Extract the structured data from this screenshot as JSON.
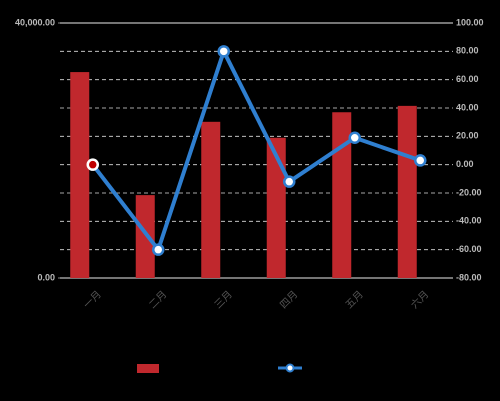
{
  "chart_data": {
    "type": "bar_line",
    "categories": [
      "一月",
      "二月",
      "三月",
      "四月",
      "五月",
      "六月"
    ],
    "series": [
      {
        "type": "bar",
        "color": "#c0282d",
        "values": [
          32300,
          13000,
          24500,
          22000,
          26000,
          27000
        ]
      },
      {
        "type": "line",
        "axis": "y2",
        "color": "#2f7fd0",
        "values": [
          0,
          -60,
          80,
          -12,
          19,
          3
        ]
      }
    ],
    "ylim": [
      0,
      40000
    ],
    "yticks": [
      {
        "value": 0,
        "label": "0.00"
      },
      {
        "value": 40000,
        "label": "40,000.00"
      }
    ],
    "y2lim": [
      -80,
      100
    ],
    "y2ticks": [
      {
        "value": -80,
        "label": "-80.00"
      },
      {
        "value": -60,
        "label": "-60.00"
      },
      {
        "value": -40,
        "label": "-40.00"
      },
      {
        "value": -20,
        "label": "-20.00"
      },
      {
        "value": 0,
        "label": "0.00"
      },
      {
        "value": 20,
        "label": "20.00"
      },
      {
        "value": 40,
        "label": "40.00"
      },
      {
        "value": 60,
        "label": "60.00"
      },
      {
        "value": 80,
        "label": "80.00"
      },
      {
        "value": 100,
        "label": "100.00"
      }
    ],
    "grid": true,
    "highlight_index": 0,
    "highlight_color": "#c00000"
  }
}
